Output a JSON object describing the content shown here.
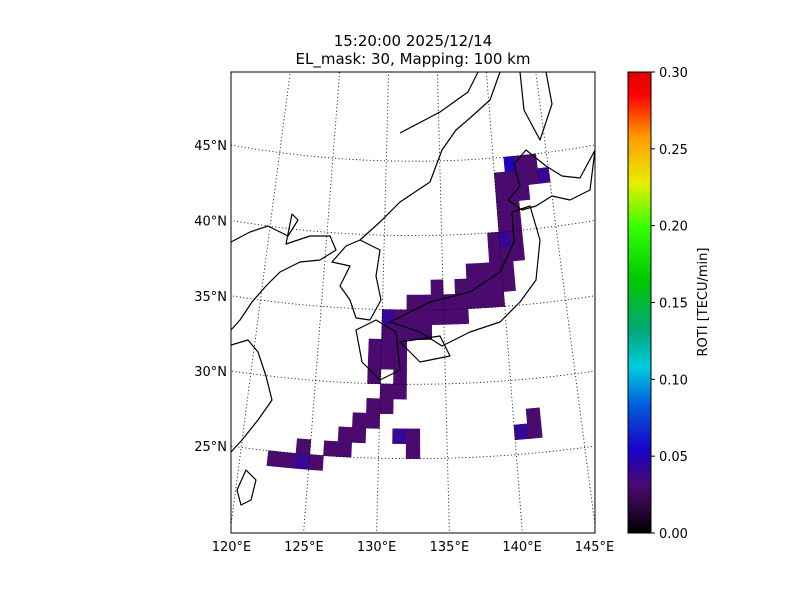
{
  "chart_data": {
    "type": "map-grid",
    "title": "15:20:00 2025/12/14",
    "subtitle": "EL_mask: 30, Mapping: 100 km",
    "xlim": [
      120,
      145
    ],
    "ylim": [
      20,
      51
    ],
    "xticks": [
      {
        "value": 120,
        "label": "120°E"
      },
      {
        "value": 125,
        "label": "125°E"
      },
      {
        "value": 130,
        "label": "130°E"
      },
      {
        "value": 135,
        "label": "135°E"
      },
      {
        "value": 140,
        "label": "140°E"
      },
      {
        "value": 145,
        "label": "145°E"
      }
    ],
    "yticks": [
      {
        "value": 25,
        "label": "25°N"
      },
      {
        "value": 30,
        "label": "30°N"
      },
      {
        "value": 35,
        "label": "35°N"
      },
      {
        "value": 40,
        "label": "40°N"
      },
      {
        "value": 45,
        "label": "45°N"
      }
    ],
    "grid": true,
    "colorbar": {
      "label": "ROTI [TECU/min]",
      "clim": [
        0,
        0.3
      ],
      "ticks": [
        {
          "value": 0,
          "label": "0.00"
        },
        0.05,
        {
          "value": 0.1,
          "label": "0.10"
        },
        0.15,
        {
          "value": 0.2,
          "label": "0.20"
        },
        0.25,
        {
          "value": 0.3,
          "label": "0.30"
        }
      ]
    },
    "cells": [
      [
        122,
        24,
        0.03
      ],
      [
        123,
        24,
        0.03
      ],
      [
        124,
        24,
        0.04
      ],
      [
        125,
        24,
        0.03
      ],
      [
        124,
        25,
        0.03
      ],
      [
        126,
        25,
        0.03
      ],
      [
        127,
        25,
        0.03
      ],
      [
        127,
        26,
        0.03
      ],
      [
        128,
        26,
        0.03
      ],
      [
        128,
        27,
        0.03
      ],
      [
        129,
        27,
        0.03
      ],
      [
        129,
        28,
        0.03
      ],
      [
        130,
        28,
        0.03
      ],
      [
        130,
        29,
        0.03
      ],
      [
        131,
        29,
        0.03
      ],
      [
        131,
        30,
        0.03
      ],
      [
        129,
        30,
        0.03
      ],
      [
        129,
        31,
        0.03
      ],
      [
        130,
        31,
        0.03
      ],
      [
        131,
        31,
        0.03
      ],
      [
        129,
        32,
        0.03
      ],
      [
        130,
        32,
        0.03
      ],
      [
        131,
        32,
        0.03
      ],
      [
        130,
        33,
        0.03
      ],
      [
        131,
        33,
        0.03
      ],
      [
        132,
        33,
        0.03
      ],
      [
        130,
        34,
        0.04
      ],
      [
        131,
        34,
        0.03
      ],
      [
        132,
        34,
        0.03
      ],
      [
        133,
        34,
        0.03
      ],
      [
        133,
        33,
        0.03
      ],
      [
        134,
        34,
        0.03
      ],
      [
        135,
        34,
        0.03
      ],
      [
        132,
        35,
        0.03
      ],
      [
        133,
        35,
        0.03
      ],
      [
        134,
        35,
        0.03
      ],
      [
        135,
        35,
        0.03
      ],
      [
        136,
        35,
        0.03
      ],
      [
        136,
        34,
        0.03
      ],
      [
        137,
        35,
        0.03
      ],
      [
        138,
        35,
        0.03
      ],
      [
        134,
        36,
        0.03
      ],
      [
        136,
        36,
        0.03
      ],
      [
        137,
        36,
        0.03
      ],
      [
        138,
        36,
        0.03
      ],
      [
        139,
        36,
        0.03
      ],
      [
        139,
        35,
        0.03
      ],
      [
        140,
        36,
        0.03
      ],
      [
        137,
        37,
        0.03
      ],
      [
        138,
        37,
        0.03
      ],
      [
        139,
        37,
        0.03
      ],
      [
        140,
        37,
        0.03
      ],
      [
        139,
        38,
        0.03
      ],
      [
        140,
        38,
        0.03
      ],
      [
        141,
        38,
        0.03
      ],
      [
        139,
        39,
        0.03
      ],
      [
        140,
        39,
        0.04
      ],
      [
        141,
        39,
        0.03
      ],
      [
        140,
        40,
        0.03
      ],
      [
        141,
        40,
        0.03
      ],
      [
        140,
        41,
        0.03
      ],
      [
        141,
        41,
        0.03
      ],
      [
        140,
        42,
        0.03
      ],
      [
        141,
        42,
        0.03
      ],
      [
        142,
        42,
        0.03
      ],
      [
        140,
        43,
        0.03
      ],
      [
        141,
        43,
        0.03
      ],
      [
        142,
        43,
        0.03
      ],
      [
        143,
        43,
        0.03
      ],
      [
        144,
        43,
        0.04
      ],
      [
        141,
        44,
        0.05
      ],
      [
        142,
        44,
        0.03
      ],
      [
        143,
        44,
        0.03
      ],
      [
        140,
        26,
        0.04
      ],
      [
        141,
        26,
        0.03
      ],
      [
        141,
        27,
        0.03
      ],
      [
        132,
        25,
        0.03
      ],
      [
        131,
        26,
        0.04
      ],
      [
        132,
        26,
        0.03
      ]
    ]
  }
}
